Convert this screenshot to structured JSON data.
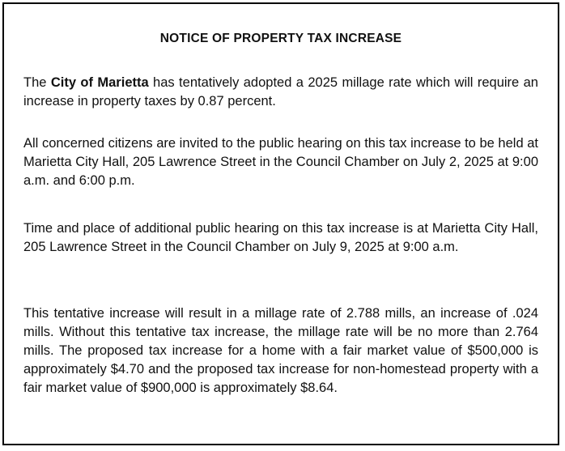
{
  "notice": {
    "title": "NOTICE OF PROPERTY TAX INCREASE",
    "paragraph1": {
      "prefix": "The ",
      "city": "City of Marietta",
      "suffix": " has tentatively adopted a 2025 millage rate which will require an increase in property taxes by 0.87 percent."
    },
    "paragraph2": "All concerned citizens are invited to the public hearing on this tax increase to be held at Marietta City Hall, 205 Lawrence Street in the Council Chamber on July 2, 2025 at 9:00 a.m. and 6:00 p.m.",
    "paragraph3": "Time and place of additional public hearing on this tax increase is at Marietta City Hall, 205 Lawrence Street in the Council Chamber on July 9, 2025 at 9:00 a.m.",
    "paragraph4": "This tentative increase will result in a millage rate of 2.788 mills, an increase of .024 mills.  Without this tentative tax increase, the millage rate will be no more than 2.764 mills.  The proposed tax increase for a home with a fair market value of $500,000 is approximately $4.70 and the proposed tax increase for non-homestead property with a fair market value of $900,000 is approximately $8.64."
  },
  "colors": {
    "border": "#000000",
    "text": "#111111",
    "background": "#ffffff"
  }
}
